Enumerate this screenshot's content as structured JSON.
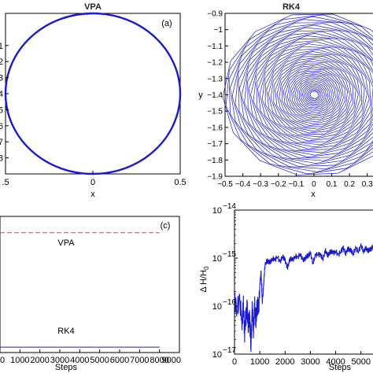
{
  "chart_data": [
    {
      "id": "a",
      "type": "line",
      "title": "VPA",
      "panel_label": "(a)",
      "xlabel": "x",
      "ylabel": "",
      "xlim": [
        -0.5,
        0.5
      ],
      "ylim": [
        -0.9,
        0.1
      ],
      "x_ticks": [
        -0.5,
        0,
        0.5
      ],
      "x_tick_labels": [
        ".5",
        "0",
        "0.5"
      ],
      "y_ticks": [
        -0.1,
        -0.2,
        -0.3,
        -0.4,
        -0.5,
        -0.6,
        -0.7,
        -0.8
      ],
      "y_tick_labels": [
        "1",
        "2",
        "3",
        "4",
        "5",
        "6",
        "7",
        "8"
      ],
      "series": [
        {
          "shape": "circle",
          "center": [
            0,
            -0.4
          ],
          "radius": 0.5,
          "color": "#1a1acd"
        }
      ]
    },
    {
      "id": "b",
      "type": "line",
      "title": "RK4",
      "xlabel": "x",
      "ylabel": "y",
      "xlim": [
        -0.5,
        0.35
      ],
      "ylim": [
        -1.9,
        -0.9
      ],
      "x_ticks": [
        -0.5,
        -0.4,
        -0.3,
        -0.2,
        -0.1,
        0,
        0.1,
        0.2,
        0.3
      ],
      "x_tick_labels": [
        "−0.5",
        "−0.4",
        "−0.3",
        "−0.2",
        "−0.1",
        "0",
        "0.1",
        "0.2",
        "0.3"
      ],
      "y_ticks": [
        -0.9,
        -1,
        -1.1,
        -1.2,
        -1.3,
        -1.4,
        -1.5,
        -1.6,
        -1.7,
        -1.8,
        -1.9
      ],
      "y_tick_labels": [
        "−0.9",
        "−1",
        "−1.1",
        "−1.2",
        "−1.3",
        "−1.4",
        "−1.5",
        "−1.6",
        "−1.7",
        "−1.8",
        "−1.9"
      ],
      "series": [
        {
          "shape": "spiral-polygon",
          "center": [
            0,
            -1.4
          ],
          "outer_radius": 0.5,
          "inner_radius": 0.02,
          "color": "#1a1acd",
          "start_marker_color": "#e0507a"
        }
      ]
    },
    {
      "id": "c",
      "type": "line",
      "panel_label": "(c)",
      "xlabel": "Steps",
      "xlim": [
        0,
        9000
      ],
      "x_ticks": [
        0,
        1000,
        2000,
        3000,
        4000,
        5000,
        6000,
        7000,
        8000,
        9000
      ],
      "x_tick_labels": [
        "0",
        "1000",
        "2000",
        "3000",
        "4000",
        "5000",
        "6000",
        "7000",
        "8000",
        "9000"
      ],
      "series": [
        {
          "name": "VPA",
          "style": "dashed",
          "color": "#d94040",
          "x": [
            0,
            8000
          ],
          "y": [
            0.88,
            0.88
          ]
        },
        {
          "name": "RK4",
          "style": "solid",
          "color": "#1a1acd",
          "x": [
            0,
            8000
          ],
          "y": [
            0.04,
            0.04
          ]
        }
      ]
    },
    {
      "id": "d",
      "type": "line",
      "xlabel": "Steps",
      "ylabel": "Δ H/H",
      "ylabel_sub": "0",
      "xlim": [
        0,
        5600
      ],
      "ylim_log10": [
        -17,
        -14
      ],
      "x_ticks": [
        0,
        1000,
        2000,
        3000,
        4000,
        5000
      ],
      "x_tick_labels": [
        "0",
        "1000",
        "2000",
        "3000",
        "4000",
        "5000"
      ],
      "y_ticks_log10": [
        -17,
        -16,
        -15,
        -14
      ],
      "y_tick_labels": [
        "10",
        "10",
        "10",
        "10"
      ],
      "y_tick_exponents": [
        "−17",
        "−16",
        "−15",
        "−14"
      ],
      "series": [
        {
          "color": "#1a1acd",
          "x": [
            0,
            100,
            200,
            300,
            350,
            400,
            450,
            500,
            550,
            600,
            650,
            700,
            750,
            800,
            850,
            900,
            950,
            1000,
            1050,
            1100,
            1150,
            1200,
            1300,
            1400,
            1500,
            1600,
            1700,
            1800,
            1900,
            2000,
            2100,
            2200,
            2300,
            2400,
            2500,
            2600,
            2700,
            2800,
            2900,
            3000,
            3100,
            3200,
            3300,
            3400,
            3500,
            3600,
            3700,
            3800,
            3900,
            4000,
            4100,
            4200,
            4300,
            4400,
            4500,
            4600,
            4700,
            4800,
            4900,
            5000,
            5100,
            5200,
            5300,
            5400,
            5500,
            5600
          ],
          "y_log10": [
            -15.85,
            -16.05,
            -15.9,
            -16.3,
            -16.0,
            -16.55,
            -16.2,
            -16.05,
            -16.4,
            -16.25,
            -16.8,
            -16.1,
            -16.45,
            -16.0,
            -16.3,
            -15.95,
            -16.1,
            -15.55,
            -15.3,
            -15.9,
            -15.6,
            -15.15,
            -15.05,
            -15.1,
            -15.0,
            -15.05,
            -14.95,
            -15.1,
            -14.95,
            -15.05,
            -15.2,
            -15.0,
            -15.05,
            -14.95,
            -15.0,
            -14.9,
            -15.05,
            -15.0,
            -14.95,
            -14.9,
            -15.1,
            -14.95,
            -14.9,
            -14.95,
            -15.0,
            -14.85,
            -14.95,
            -14.85,
            -14.9,
            -14.85,
            -14.95,
            -14.85,
            -14.8,
            -14.9,
            -14.8,
            -14.85,
            -14.9,
            -14.8,
            -14.85,
            -14.75,
            -14.85,
            -14.8,
            -14.85,
            -14.8,
            -14.75,
            -14.8
          ]
        }
      ]
    }
  ]
}
